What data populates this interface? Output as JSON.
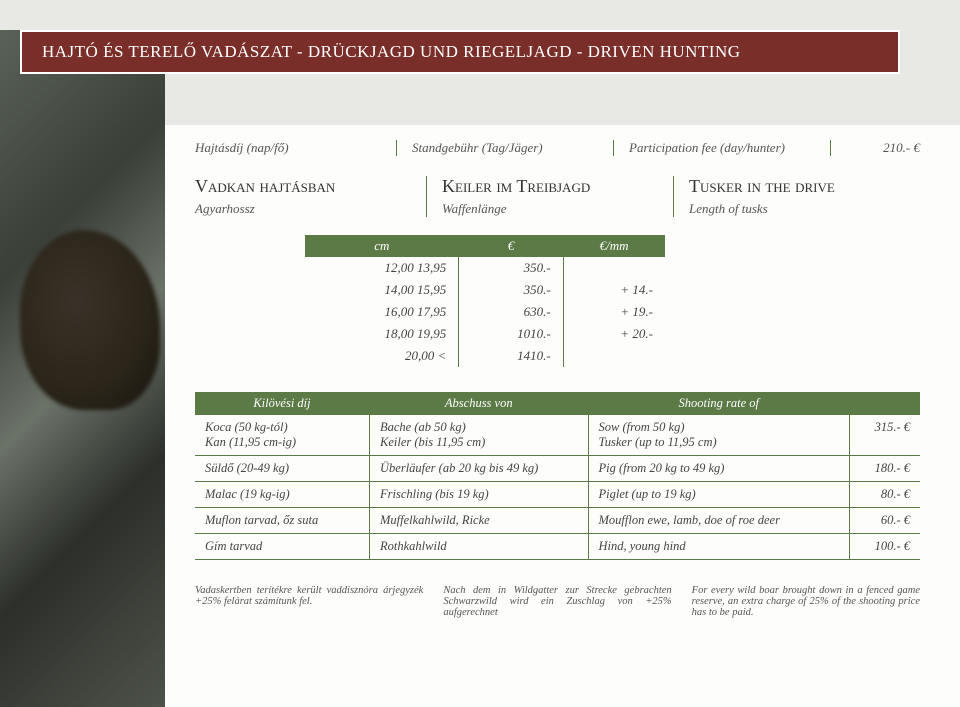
{
  "colors": {
    "header_bg": "#7a2e2a",
    "header_border": "#ffffff",
    "accent": "#5b7a46",
    "page_bg": "#fdfdfb",
    "text": "#4a4a4a"
  },
  "header_title": "HAJTÓ ÉS TERELŐ VADÁSZAT - DRÜCKJAGD UND RIEGELJAGD - DRIVEN HUNTING",
  "fee_labels": {
    "hu": "Hajtásdíj (nap/fő)",
    "de": "Standgebühr (Tag/Jäger)",
    "en": "Participation fee (day/hunter)",
    "amount": "210.- €"
  },
  "drive": {
    "hu": {
      "title": "Vadkan hajtásban",
      "sub": "Agyarhossz"
    },
    "de": {
      "title": "Keiler im Treibjagd",
      "sub": "Waffenlänge"
    },
    "en": {
      "title": "Tusker in the drive",
      "sub": "Length of tusks"
    }
  },
  "price_cols": [
    "cm",
    "€",
    "€/mm"
  ],
  "price_rows": [
    {
      "cm": "12,00   13,95",
      "eur": "350.-",
      "mm": ""
    },
    {
      "cm": "14,00   15,95",
      "eur": "350.-",
      "mm": "+ 14.-"
    },
    {
      "cm": "16,00   17,95",
      "eur": "630.-",
      "mm": "+ 19.-"
    },
    {
      "cm": "18,00   19,95",
      "eur": "1010.-",
      "mm": "+ 20.-"
    },
    {
      "cm": "20,00  <",
      "eur": "1410.-",
      "mm": ""
    }
  ],
  "shooting_header": {
    "hu": "Kilövési díj",
    "de": "Abschuss von",
    "en": "Shooting rate of"
  },
  "shooting_rows": [
    {
      "hu": "Koca (50 kg-tól)\nKan (11,95 cm-ig)",
      "de": "Bache (ab 50 kg)\nKeiler (bis 11,95 cm)",
      "en": "Sow (from 50 kg)\nTusker (up to 11,95 cm)",
      "price": "315.- €"
    },
    {
      "hu": "Süldő (20-49 kg)",
      "de": "Überläufer (ab 20 kg bis 49 kg)",
      "en": "Pig (from 20 kg to 49 kg)",
      "price": "180.- €"
    },
    {
      "hu": "Malac (19 kg-ig)",
      "de": "Frischling (bis 19 kg)",
      "en": "Piglet (up to 19 kg)",
      "price": "80.- €"
    },
    {
      "hu": "Muflon tarvad, őz suta",
      "de": "Muffelkahlwild, Ricke",
      "en": "Moufflon ewe, lamb, doe of roe deer",
      "price": "60.- €"
    },
    {
      "hu": "Gím tarvad",
      "de": "Rothkahlwild",
      "en": "Hind, young hind",
      "price": "100.- €"
    }
  ],
  "footnotes": {
    "hu": "Vadaskertben terítékre került vaddisznóra árjegyzék +25% felárat számítunk fel.",
    "de": "Nach dem in Wildgatter zur Strecke gebrachten Schwarzwild wird ein Zuschlag von +25% aufgerechnet",
    "en": "For every wild boar brought down in a fenced game reserve, an extra charge of 25% of the shooting price has to be paid."
  }
}
